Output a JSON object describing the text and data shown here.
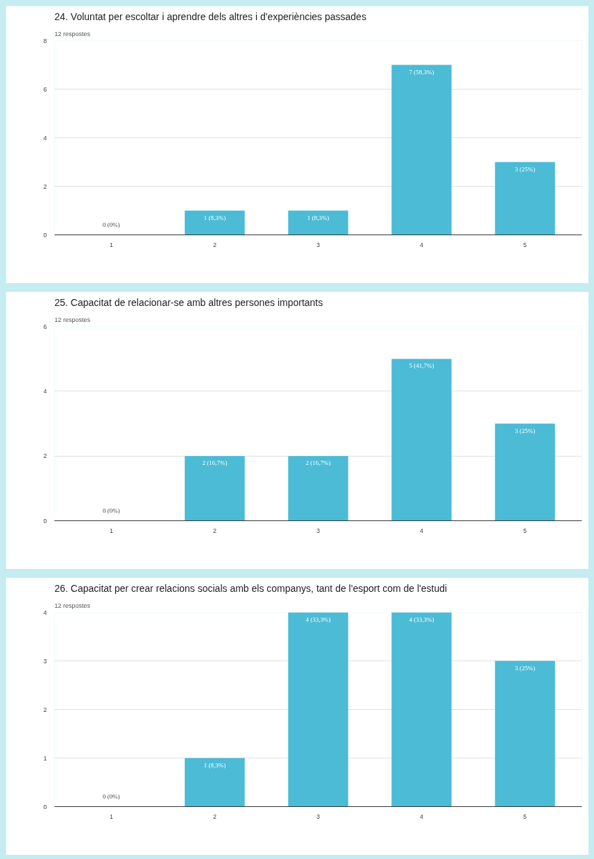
{
  "chart_data": [
    {
      "type": "bar",
      "title": "24. Voluntat per escoltar i aprendre dels altres i d'experiències passades",
      "subtitle": "12 respostes",
      "categories": [
        "1",
        "2",
        "3",
        "4",
        "5"
      ],
      "values": [
        0,
        1,
        1,
        7,
        3
      ],
      "value_labels": [
        "0 (0%)",
        "1 (8,3%)",
        "1 (8,3%)",
        "7 (58,3%)",
        "3 (25%)"
      ],
      "color": "#4bbbd6",
      "ylim": [
        0,
        8
      ],
      "yticks": [
        0,
        2,
        4,
        6,
        8
      ],
      "grid": "y"
    },
    {
      "type": "bar",
      "title": "25. Capacitat de relacionar-se amb altres persones importants",
      "subtitle": "12 respostes",
      "categories": [
        "1",
        "2",
        "3",
        "4",
        "5"
      ],
      "values": [
        0,
        2,
        2,
        5,
        3
      ],
      "value_labels": [
        "0 (0%)",
        "2 (16,7%)",
        "2 (16,7%)",
        "5 (41,7%)",
        "3 (25%)"
      ],
      "color": "#4bbbd6",
      "ylim": [
        0,
        6
      ],
      "yticks": [
        0,
        2,
        4,
        6
      ],
      "grid": "y"
    },
    {
      "type": "bar",
      "title": "26. Capacitat per crear relacions socials amb els companys, tant de l'esport com de l'estudi",
      "subtitle": "12 respostes",
      "categories": [
        "1",
        "2",
        "3",
        "4",
        "5"
      ],
      "values": [
        0,
        1,
        4,
        4,
        3
      ],
      "value_labels": [
        "0 (0%)",
        "1 (8,3%)",
        "4 (33,3%)",
        "4 (33,3%)",
        "3 (25%)"
      ],
      "color": "#4bbbd6",
      "ylim": [
        0,
        4
      ],
      "yticks": [
        0,
        1,
        2,
        3,
        4
      ],
      "grid": "y"
    }
  ]
}
